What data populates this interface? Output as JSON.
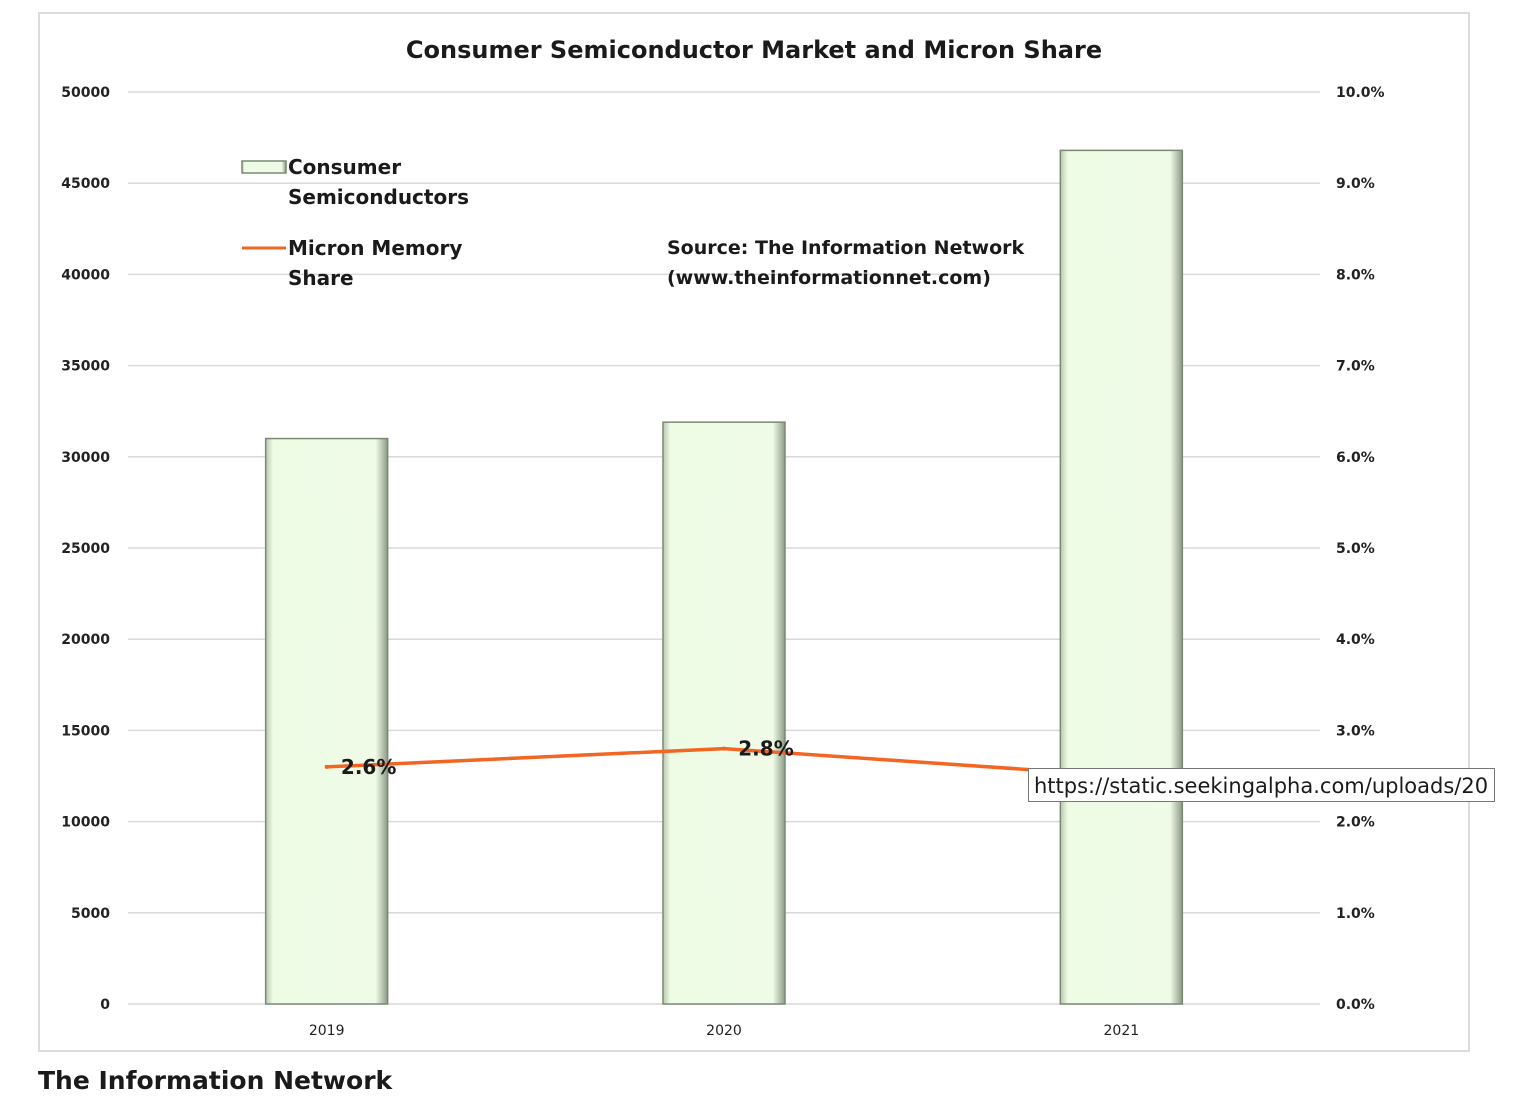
{
  "chart_data": {
    "type": "bar",
    "title": "Consumer Semiconductor Market and Micron Share",
    "categories": [
      "2019",
      "2020",
      "2021"
    ],
    "series": [
      {
        "name": "Consumer Semiconductors",
        "type": "bar",
        "axis": "left",
        "values": [
          31000,
          31900,
          46800
        ]
      },
      {
        "name": "Micron Memory Share",
        "type": "line",
        "axis": "right",
        "values": [
          2.6,
          2.8,
          2.5
        ],
        "data_labels": [
          "2.6%",
          "2.8%",
          ""
        ]
      }
    ],
    "legend_lines": [
      [
        "Consumer",
        "Semiconductors"
      ],
      [
        "Micron Memory",
        "Share"
      ]
    ],
    "y_left": {
      "ylim": [
        0,
        50000
      ],
      "ticks": [
        "0",
        "5000",
        "10000",
        "15000",
        "20000",
        "25000",
        "30000",
        "35000",
        "40000",
        "45000",
        "50000"
      ]
    },
    "y_right": {
      "ylim": [
        0,
        10
      ],
      "ticks": [
        "0.0%",
        "1.0%",
        "2.0%",
        "3.0%",
        "4.0%",
        "5.0%",
        "6.0%",
        "7.0%",
        "8.0%",
        "9.0%",
        "10.0%"
      ]
    },
    "annotation": [
      "Source: The Information Network",
      "(www.theinformationnet.com)"
    ],
    "grid": true,
    "legend_position": "top-left",
    "colors": {
      "bar_fill": "#effbe6",
      "bar_edge": "#7a8a72",
      "line": "#f26522",
      "grid": "#d9d9d9"
    }
  },
  "tooltip": {
    "url": "https://static.seekingalpha.com/uploads/20"
  },
  "caption": "The Information Network"
}
